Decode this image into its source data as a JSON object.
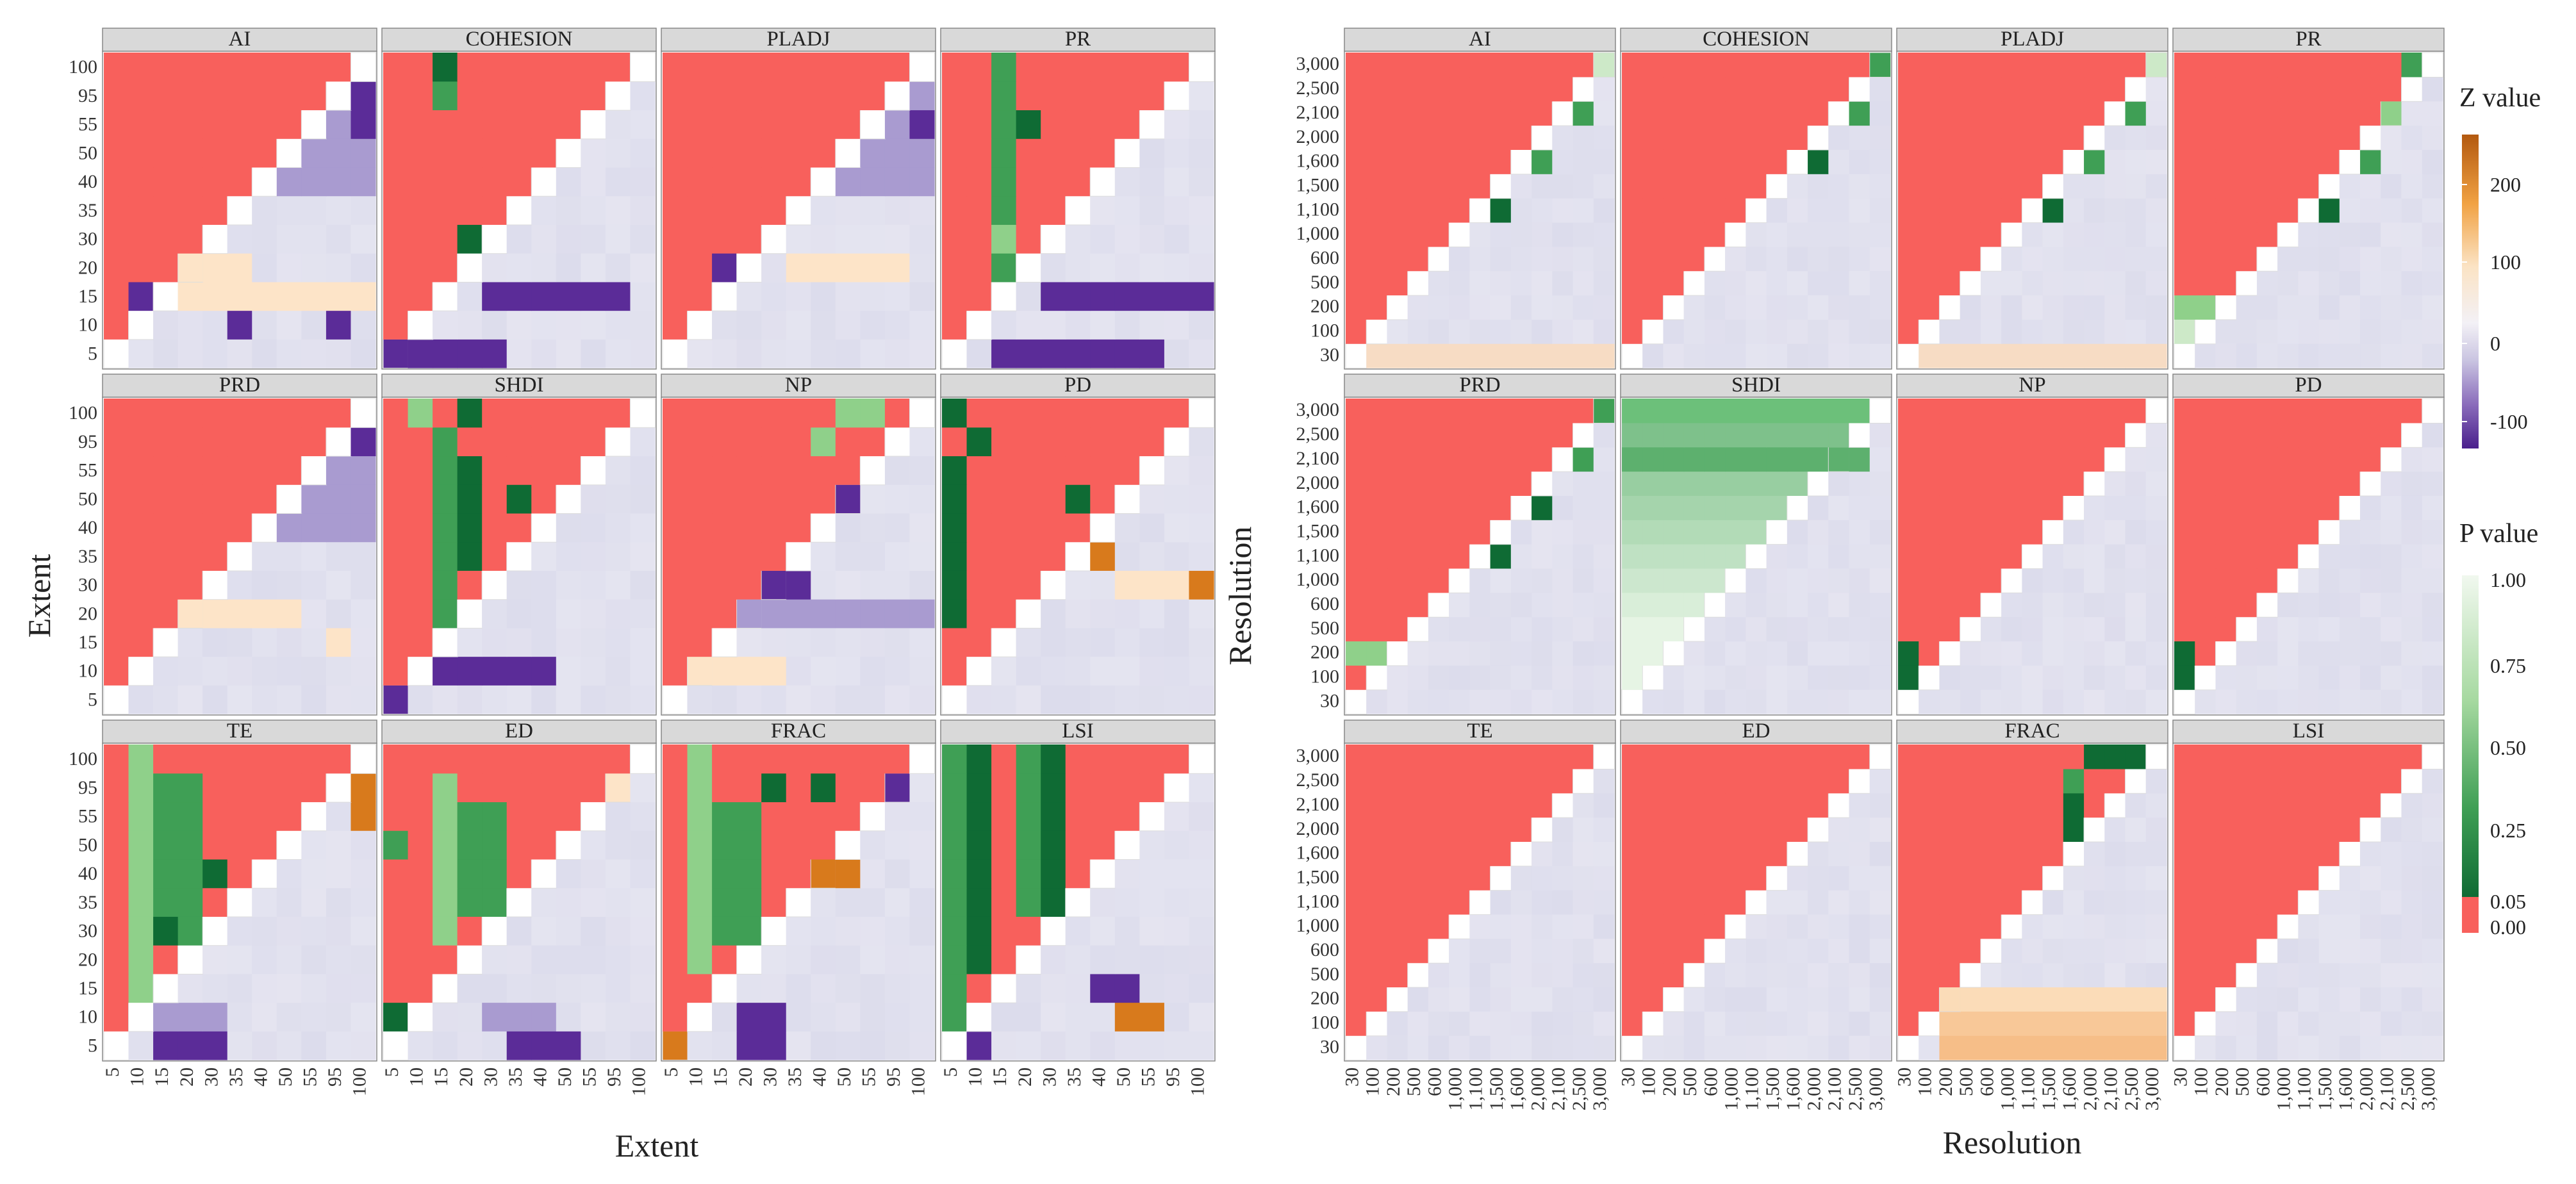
{
  "chart_data": [
    {
      "type": "heatmap",
      "name": "extent",
      "xlabel": "Extent",
      "ylabel": "Extent",
      "tick_labels": [
        "5",
        "10",
        "15",
        "20",
        "30",
        "35",
        "40",
        "50",
        "55",
        "95",
        "100"
      ],
      "panels": [
        {
          "title": "AI"
        },
        {
          "title": "COHESION"
        },
        {
          "title": "PLADJ"
        },
        {
          "title": "PR"
        },
        {
          "title": "PRD"
        },
        {
          "title": "SHDI"
        },
        {
          "title": "NP"
        },
        {
          "title": "PD"
        },
        {
          "title": "TE"
        },
        {
          "title": "ED"
        },
        {
          "title": "FRAC"
        },
        {
          "title": "LSI"
        }
      ]
    },
    {
      "type": "heatmap",
      "name": "resolution",
      "xlabel": "Resolution",
      "ylabel": "Resolution",
      "tick_labels": [
        "30",
        "100",
        "200",
        "500",
        "600",
        "1,000",
        "1,100",
        "1,500",
        "1,600",
        "2,000",
        "2,100",
        "2,500",
        "3,000"
      ],
      "panels": [
        {
          "title": "AI"
        },
        {
          "title": "COHESION"
        },
        {
          "title": "PLADJ"
        },
        {
          "title": "PR"
        },
        {
          "title": "PRD"
        },
        {
          "title": "SHDI"
        },
        {
          "title": "NP"
        },
        {
          "title": "PD"
        },
        {
          "title": "TE"
        },
        {
          "title": "ED"
        },
        {
          "title": "FRAC"
        },
        {
          "title": "LSI"
        }
      ]
    }
  ],
  "legend": {
    "z_title": "Z value",
    "z_ticks": [
      "200",
      "100",
      "0",
      "-100"
    ],
    "p_title": "P value",
    "p_ticks": [
      "1.00",
      "0.75",
      "0.50",
      "0.25",
      "0.05",
      "0.00"
    ]
  },
  "colors": {
    "significant": "#f8605c",
    "neutral": "#dcdcec",
    "purple": "#5b2c98",
    "orange": "#d87a1c",
    "green_dark": "#0f6b34",
    "green_light": "#e6f4e4",
    "strip": "#d9d9d9"
  }
}
